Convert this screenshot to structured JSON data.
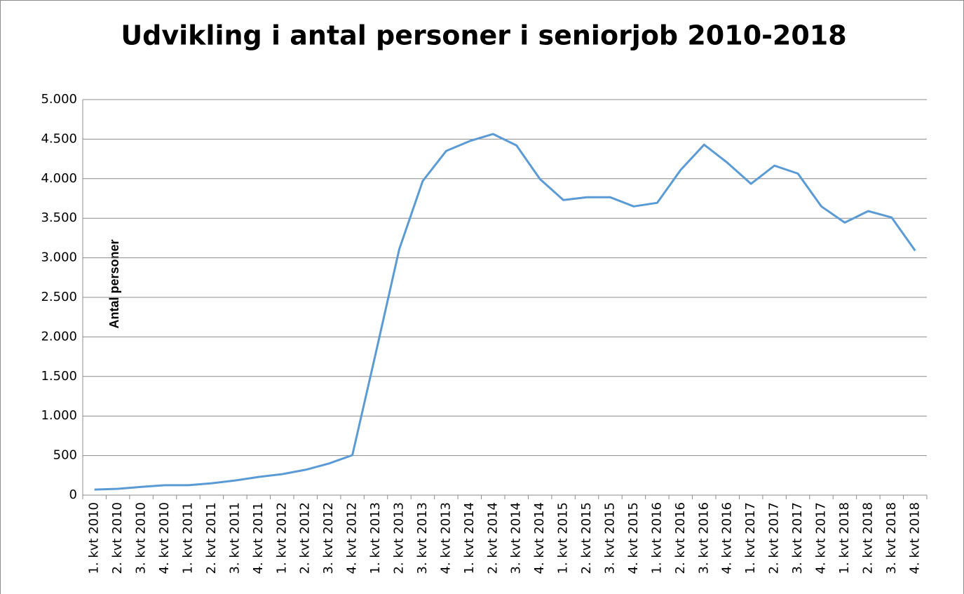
{
  "chart_data": {
    "type": "line",
    "title": "Udvikling i antal personer i seniorjob 2010-2018",
    "y_label": "Antal personer",
    "categories": [
      "1. kvt 2010",
      "2. kvt 2010",
      "3. kvt 2010",
      "4. kvt 2010",
      "1. kvt 2011",
      "2. kvt 2011",
      "3. kvt 2011",
      "4. kvt 2011",
      "1. kvt 2012",
      "2. kvt 2012",
      "3. kvt 2012",
      "4. kvt 2012",
      "1. kvt 2013",
      "2. kvt 2013",
      "3. kvt 2013",
      "4. kvt 2013",
      "1. kvt 2014",
      "2. kvt 2014",
      "3. kvt 2014",
      "4. kvt 2014",
      "1. kvt 2015",
      "2. kvt 2015",
      "3. kvt 2015",
      "4. kvt 2015",
      "1. kvt 2016",
      "2. kvt 2016",
      "3. kvt 2016",
      "4. kvt 2016",
      "1. kvt 2017",
      "2. kvt 2017",
      "3. kvt 2017",
      "4. kvt 2017",
      "1. kvt 2018",
      "2. kvt 2018",
      "3. kvt 2018",
      "4. kvt 2018"
    ],
    "values": [
      70,
      80,
      105,
      125,
      125,
      150,
      185,
      230,
      265,
      320,
      400,
      505,
      1800,
      3110,
      3970,
      4350,
      4475,
      4565,
      4420,
      3995,
      3730,
      3765,
      3765,
      3650,
      3695,
      4110,
      4430,
      4200,
      3935,
      4165,
      4065,
      3650,
      3445,
      3590,
      3510,
      3090
    ],
    "color": "#5b9bd5",
    "ylim": [
      0,
      5000
    ],
    "yticks": [
      0,
      500,
      {
        "value": 1000,
        "label": "1.000"
      },
      {
        "value": 1500,
        "label": "1.500"
      },
      {
        "value": 2000,
        "label": "2.000"
      },
      {
        "value": 2500,
        "label": "2.500"
      },
      {
        "value": 3000,
        "label": "3.000"
      },
      {
        "value": 3500,
        "label": "3.500"
      },
      {
        "value": 4000,
        "label": "4.000"
      },
      {
        "value": 4500,
        "label": "4.500"
      },
      {
        "value": 5000,
        "label": "5.000"
      }
    ],
    "grid": true
  }
}
